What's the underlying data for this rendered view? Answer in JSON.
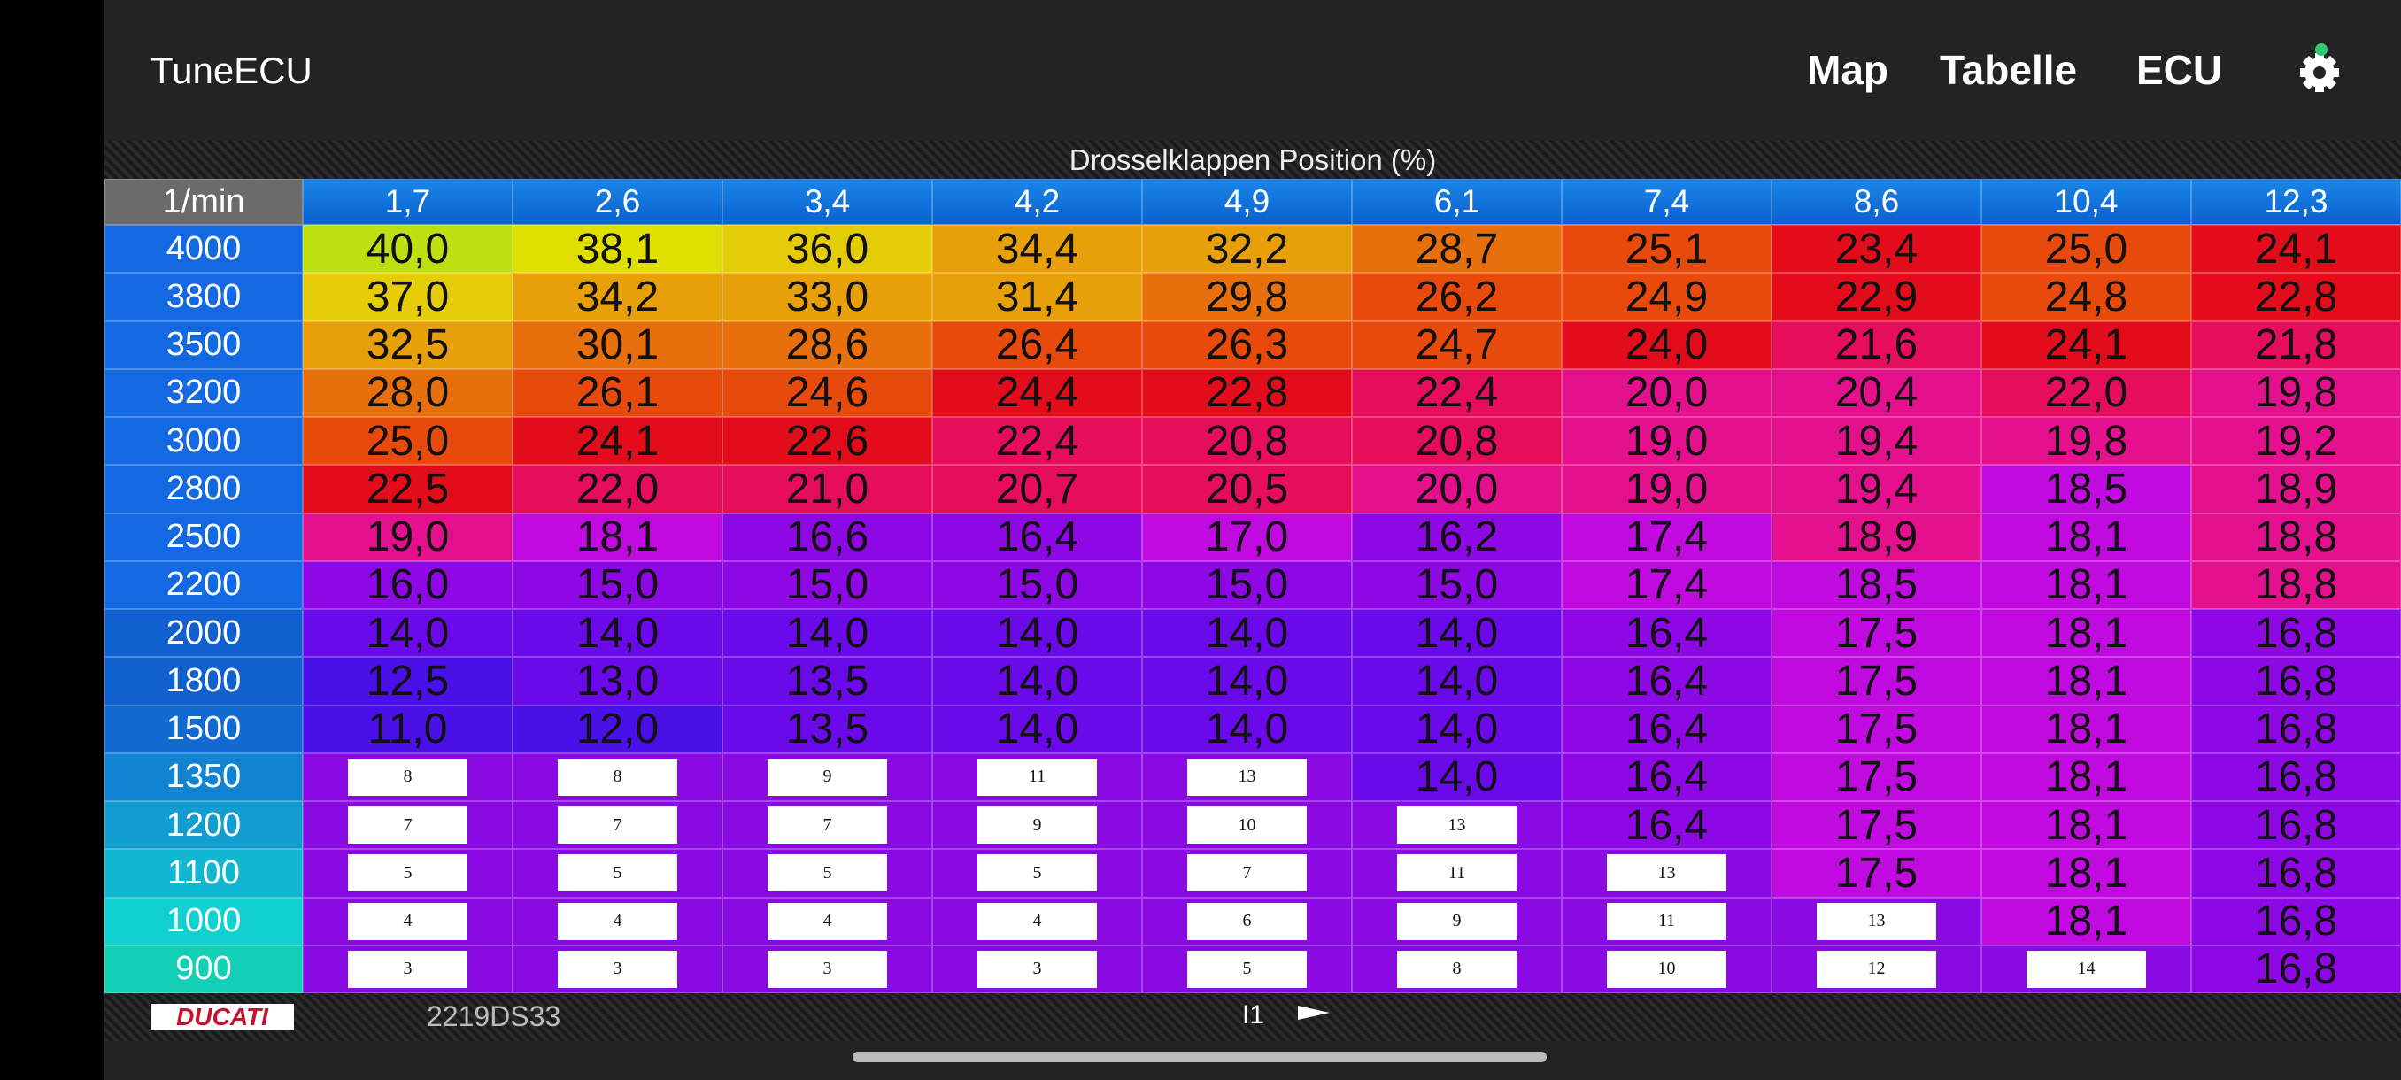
{
  "header": {
    "app_name": "TuneECU",
    "nav": [
      "Map",
      "Tabelle",
      "ECU"
    ]
  },
  "table": {
    "title": "Drosselklappen Position (%)",
    "corner": "1/min",
    "columns": [
      "1,7",
      "2,6",
      "3,4",
      "4,2",
      "4,9",
      "6,1",
      "7,4",
      "8,6",
      "10,4",
      "12,3"
    ],
    "rows": [
      {
        "rpm": "4000",
        "cells": [
          "40,0",
          "38,1",
          "36,0",
          "34,4",
          "32,2",
          "28,7",
          "25,1",
          "23,4",
          "25,0",
          "24,1"
        ]
      },
      {
        "rpm": "3800",
        "cells": [
          "37,0",
          "34,2",
          "33,0",
          "31,4",
          "29,8",
          "26,2",
          "24,9",
          "22,9",
          "24,8",
          "22,8"
        ]
      },
      {
        "rpm": "3500",
        "cells": [
          "32,5",
          "30,1",
          "28,6",
          "26,4",
          "26,3",
          "24,7",
          "24,0",
          "21,6",
          "24,1",
          "21,8"
        ]
      },
      {
        "rpm": "3200",
        "cells": [
          "28,0",
          "26,1",
          "24,6",
          "24,4",
          "22,8",
          "22,4",
          "20,0",
          "20,4",
          "22,0",
          "19,8"
        ]
      },
      {
        "rpm": "3000",
        "cells": [
          "25,0",
          "24,1",
          "22,6",
          "22,4",
          "20,8",
          "20,8",
          "19,0",
          "19,4",
          "19,8",
          "19,2"
        ]
      },
      {
        "rpm": "2800",
        "cells": [
          "22,5",
          "22,0",
          "21,0",
          "20,7",
          "20,5",
          "20,0",
          "19,0",
          "19,4",
          "18,5",
          "18,9"
        ]
      },
      {
        "rpm": "2500",
        "cells": [
          "19,0",
          "18,1",
          "16,6",
          "16,4",
          "17,0",
          "16,2",
          "17,4",
          "18,9",
          "18,1",
          "18,8"
        ]
      },
      {
        "rpm": "2200",
        "cells": [
          "16,0",
          "15,0",
          "15,0",
          "15,0",
          "15,0",
          "15,0",
          "17,4",
          "18,5",
          "18,1",
          "18,8"
        ]
      },
      {
        "rpm": "2000",
        "cells": [
          "14,0",
          "14,0",
          "14,0",
          "14,0",
          "14,0",
          "14,0",
          "16,4",
          "17,5",
          "18,1",
          "16,8"
        ]
      },
      {
        "rpm": "1800",
        "cells": [
          "12,5",
          "13,0",
          "13,5",
          "14,0",
          "14,0",
          "14,0",
          "16,4",
          "17,5",
          "18,1",
          "16,8"
        ]
      },
      {
        "rpm": "1500",
        "cells": [
          "11,0",
          "12,0",
          "13,5",
          "14,0",
          "14,0",
          "14,0",
          "16,4",
          "17,5",
          "18,1",
          "16,8"
        ]
      },
      {
        "rpm": "1350",
        "cells": [
          8,
          8,
          9,
          11,
          13,
          "14,0",
          "16,4",
          "17,5",
          "18,1",
          "16,8"
        ]
      },
      {
        "rpm": "1200",
        "cells": [
          7,
          7,
          7,
          9,
          10,
          13,
          "16,4",
          "17,5",
          "18,1",
          "16,8"
        ]
      },
      {
        "rpm": "1100",
        "cells": [
          5,
          5,
          5,
          5,
          7,
          11,
          13,
          "17,5",
          "18,1",
          "16,8"
        ]
      },
      {
        "rpm": "1000",
        "cells": [
          4,
          4,
          4,
          4,
          6,
          9,
          11,
          13,
          "18,1",
          "16,8"
        ]
      },
      {
        "rpm": "900",
        "cells": [
          3,
          3,
          3,
          3,
          5,
          8,
          10,
          12,
          14,
          "16,8"
        ]
      }
    ]
  },
  "footer": {
    "brand": "DUCATI",
    "model": "2219DS33",
    "page": "I1"
  }
}
